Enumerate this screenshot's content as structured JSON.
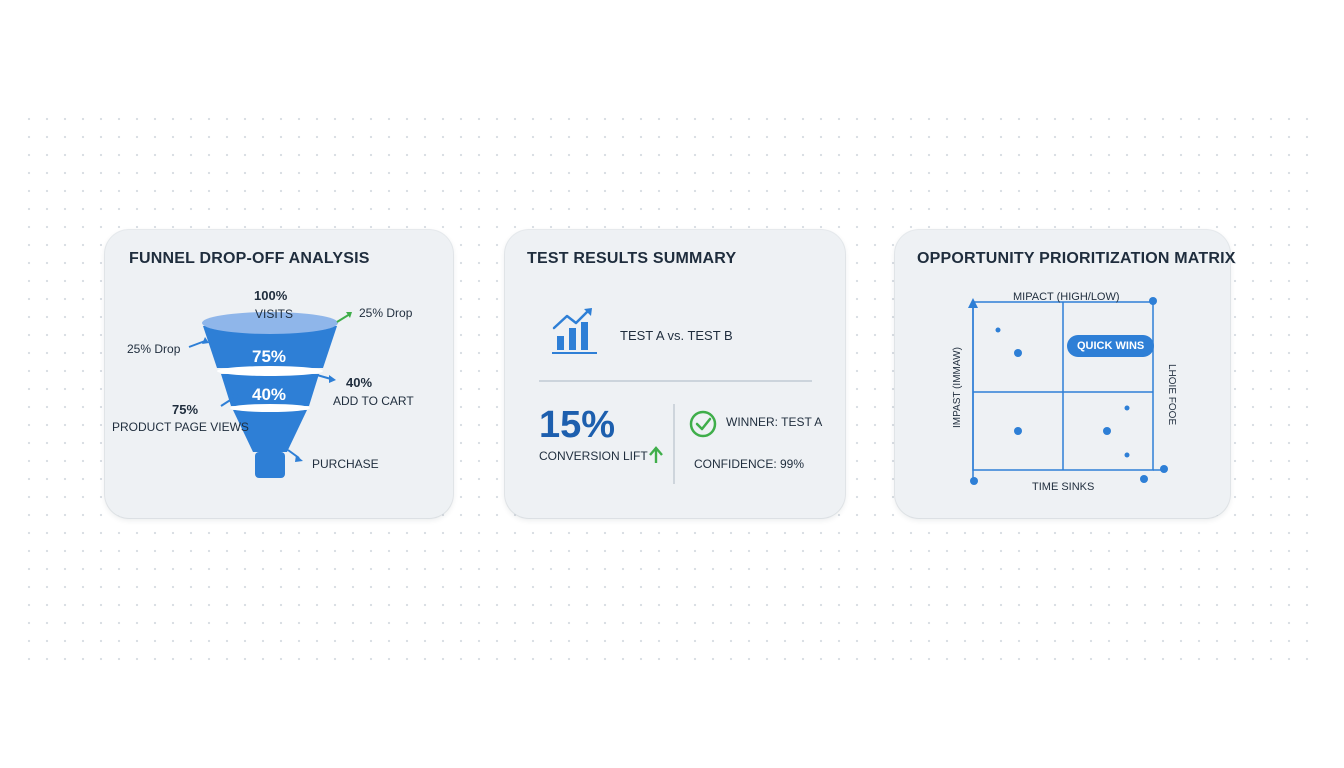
{
  "funnel_card": {
    "title": "FUNNEL DROP-OFF ANALYSIS",
    "top_percent": "100%",
    "top_label": "VISITS",
    "right_drop": "25% Drop",
    "left_drop": "25% Drop",
    "seg1_value": "75%",
    "seg2_value": "40%",
    "cart_percent": "40%",
    "cart_label": "ADD TO CART",
    "product_percent": "75%",
    "product_label": "PRODUCT PAGE VIEWS",
    "purchase_label": "PURCHASE"
  },
  "test_card": {
    "title": "TEST RESULTS SUMMARY",
    "comparison": "TEST A vs. TEST B",
    "lift_value": "15%",
    "lift_label": "CONVERSION LIFT",
    "winner": "WINNER: TEST A",
    "confidence": "CONFIDENCE: 99%"
  },
  "matrix_card": {
    "title": "OPPORTUNITY PRIORITIZATION MATRIX",
    "top_axis": "MIPACT (HIGH/LOW)",
    "left_axis": "IMPAST (IMMAW)",
    "right_axis": "LHOIE FOOE",
    "bottom_axis": "TIME SINKS",
    "quick_wins": "QUICK WINS"
  },
  "colors": {
    "accent": "#2e7fd6",
    "accent_dark": "#1d5fae",
    "funnel_top": "#8fb6ea",
    "success": "#3fae4a",
    "card_bg": "#eef1f4"
  },
  "icons": [
    "bar-chart-trend-icon",
    "check-circle-icon",
    "arrow-up-icon"
  ]
}
